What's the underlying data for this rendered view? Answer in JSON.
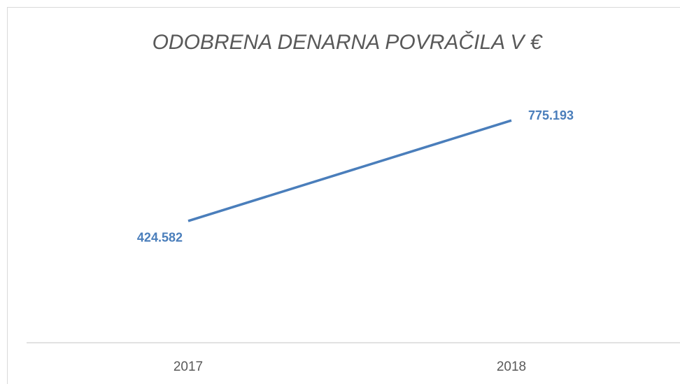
{
  "chart_data": {
    "type": "line",
    "title": "ODOBRENA DENARNA POVRAČILA V €",
    "categories": [
      "2017",
      "2018"
    ],
    "series": [
      {
        "name": "Odobrena denarna povračila",
        "color": "#4a7ebb",
        "values": [
          424582,
          775193
        ],
        "value_labels": [
          "424.582",
          "775.193"
        ]
      }
    ],
    "ylim": [
      0,
      900000
    ]
  }
}
